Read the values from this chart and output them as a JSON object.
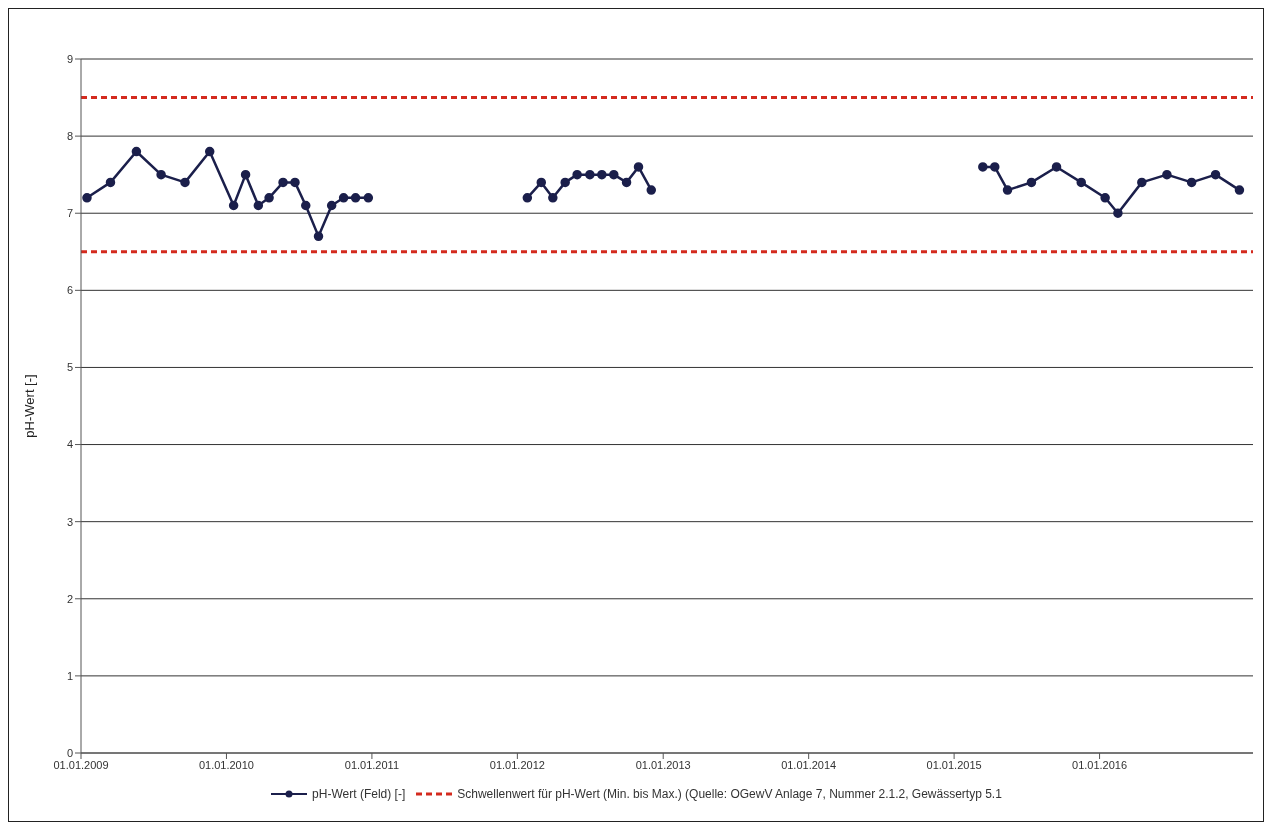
{
  "chart_data": {
    "type": "line",
    "ylabel": "pH-Wert [-]",
    "x": [
      "2009-01-16",
      "2009-03-16",
      "2009-05-20",
      "2009-07-21",
      "2009-09-19",
      "2009-11-20",
      "2010-01-19",
      "2010-02-18",
      "2010-03-22",
      "2010-04-18",
      "2010-05-23",
      "2010-06-22",
      "2010-07-19",
      "2010-08-20",
      "2010-09-22",
      "2010-10-22",
      "2010-11-21",
      "2010-12-23",
      "2011-07-01",
      "2012-01-26",
      "2012-03-01",
      "2012-03-30",
      "2012-04-30",
      "2012-05-30",
      "2012-07-01",
      "2012-07-31",
      "2012-08-30",
      "2012-10-01",
      "2012-10-31",
      "2012-12-02",
      "2014-02-01",
      "2015-03-14",
      "2015-04-13",
      "2015-05-15",
      "2015-07-14",
      "2015-09-15",
      "2015-11-16",
      "2016-01-15",
      "2016-02-16",
      "2016-04-16",
      "2016-06-18",
      "2016-08-19",
      "2016-10-18",
      "2016-12-17"
    ],
    "series": [
      {
        "name": "pH-Wert (Feld) [-]",
        "color": "#1b1f4b",
        "values": [
          7.2,
          7.4,
          7.8,
          7.5,
          7.4,
          7.8,
          7.1,
          7.5,
          7.1,
          7.2,
          7.4,
          7.4,
          7.1,
          6.7,
          7.1,
          7.2,
          7.2,
          7.2,
          null,
          7.2,
          7.4,
          7.2,
          7.4,
          7.5,
          7.5,
          7.5,
          7.5,
          7.4,
          7.6,
          7.3,
          null,
          7.6,
          7.6,
          7.3,
          7.4,
          7.6,
          7.4,
          7.2,
          7.0,
          7.4,
          7.5,
          7.4,
          7.5,
          7.3
        ]
      }
    ],
    "ref_lines": [
      {
        "axis": "y",
        "value": 8.5,
        "label": "Schwellenwert für pH-Wert (Min. bis Max.) (Quelle: OGewV Anlage 7, Nummer 2.1.2, Gewässertyp 5.1",
        "color": "#d42a1e",
        "line_style": "dashed"
      },
      {
        "axis": "y",
        "value": 6.5,
        "color": "#d42a1e",
        "line_style": "dashed"
      }
    ],
    "xlim": [
      "2009-01-01",
      "2017-01-20"
    ],
    "xticks": [
      {
        "value": "2009-01-01",
        "label": "01.01.2009"
      },
      {
        "value": "2010-01-01",
        "label": "01.01.2010"
      },
      {
        "value": "2011-01-01",
        "label": "01.01.2011"
      },
      {
        "value": "2012-01-01",
        "label": "01.01.2012"
      },
      {
        "value": "2013-01-01",
        "label": "01.01.2013"
      },
      {
        "value": "2014-01-01",
        "label": "01.01.2014"
      },
      {
        "value": "2015-01-01",
        "label": "01.01.2015"
      },
      {
        "value": "2016-01-01",
        "label": "01.01.2016"
      }
    ],
    "ylim": [
      0,
      9
    ],
    "yticks": [
      0,
      1,
      2,
      3,
      4,
      5,
      6,
      7,
      8,
      9
    ],
    "grid": "y",
    "legend": "bottom",
    "marker": "circle",
    "line_style": "solid"
  }
}
